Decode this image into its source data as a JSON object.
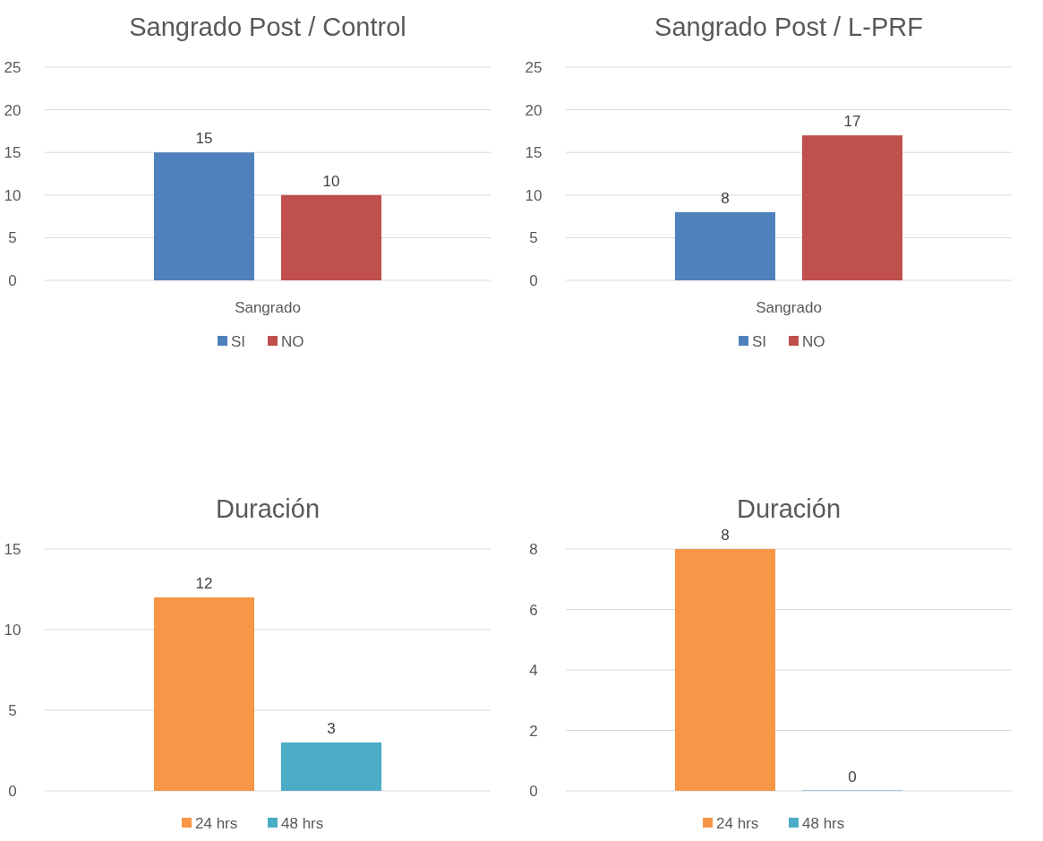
{
  "chart_data": [
    {
      "type": "bar",
      "title": "Sangrado Post / Control",
      "categories": [
        "Sangrado"
      ],
      "series": [
        {
          "name": "SI",
          "color": "#4f81bd",
          "values": [
            15
          ]
        },
        {
          "name": "NO",
          "color": "#c0504d",
          "values": [
            10
          ]
        }
      ],
      "ylim": [
        0,
        25
      ],
      "yticks": [
        0,
        5,
        10,
        15,
        20,
        25
      ],
      "grid": "y",
      "legend": "bottom",
      "data_labels": true
    },
    {
      "type": "bar",
      "title": "Sangrado Post / L-PRF",
      "categories": [
        "Sangrado"
      ],
      "series": [
        {
          "name": "SI",
          "color": "#4f81bd",
          "values": [
            8
          ]
        },
        {
          "name": "NO",
          "color": "#c0504d",
          "values": [
            17
          ]
        }
      ],
      "ylim": [
        0,
        25
      ],
      "yticks": [
        0,
        5,
        10,
        15,
        20,
        25
      ],
      "grid": "y",
      "legend": "bottom",
      "data_labels": true
    },
    {
      "type": "bar",
      "title": "Duración",
      "categories": [
        null
      ],
      "series": [
        {
          "name": "24 hrs",
          "color": "#f79646",
          "values": [
            12
          ]
        },
        {
          "name": "48 hrs",
          "color": "#4bacc6",
          "values": [
            3
          ]
        }
      ],
      "ylim": [
        0,
        15
      ],
      "yticks": [
        0,
        5,
        10,
        15
      ],
      "grid": "y",
      "legend": "bottom",
      "data_labels": true
    },
    {
      "type": "bar",
      "title": "Duración",
      "categories": [
        null
      ],
      "series": [
        {
          "name": "24 hrs",
          "color": "#f79646",
          "values": [
            8
          ]
        },
        {
          "name": "48 hrs",
          "color": "#4bacc6",
          "values": [
            0
          ]
        }
      ],
      "ylim": [
        0,
        8
      ],
      "yticks": [
        0,
        2,
        4,
        6,
        8
      ],
      "grid": "y",
      "legend": "bottom",
      "data_labels": true
    }
  ]
}
